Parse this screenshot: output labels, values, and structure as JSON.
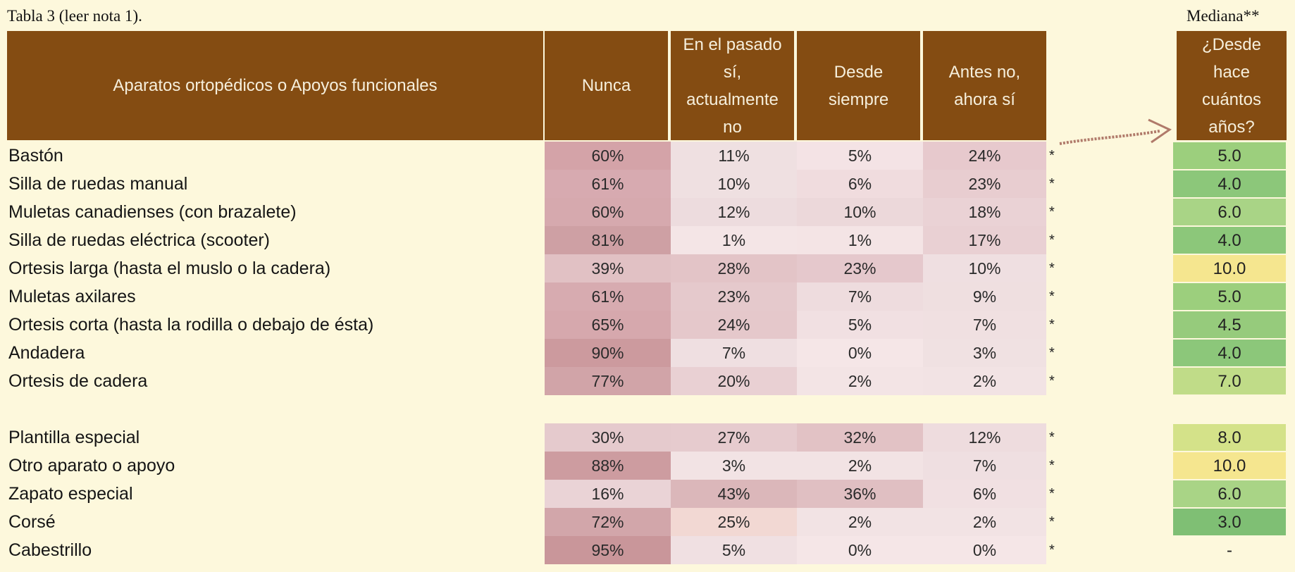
{
  "caption": "Tabla 3 (leer nota 1).",
  "median_title": "Mediana**",
  "headers": {
    "device": "Aparatos ortopédicos o Apoyos funcionales",
    "never": "Nunca",
    "past_lines": [
      "En el pasado",
      "sí,",
      "actualmente",
      "no"
    ],
    "always_lines": [
      "Desde",
      "siempre"
    ],
    "now_lines": [
      "Antes no,",
      "ahora sí"
    ],
    "years_lines": [
      "¿Desde",
      "hace",
      "cuántos",
      "años?"
    ]
  },
  "colors": {
    "header_bg": "#844c12",
    "page_bg": "#fdf8dc"
  },
  "rows": [
    {
      "label": "Bastón",
      "nunca": "60%",
      "pasado": "11%",
      "siempre": "5%",
      "ahora": "24%",
      "star": "*",
      "mediana": "5.0",
      "colors": [
        "#d4a3a8",
        "#efe0e1",
        "#f4e3e5",
        "#e7c9cd"
      ],
      "mcolor": "#9ccf7d"
    },
    {
      "label": "Silla de ruedas manual",
      "nunca": "61%",
      "pasado": "10%",
      "siempre": "6%",
      "ahora": "23%",
      "star": "*",
      "mediana": "4.0",
      "colors": [
        "#d7aab0",
        "#efe0e1",
        "#f0dcde",
        "#e8cdd0"
      ],
      "mcolor": "#8cc77a"
    },
    {
      "label": "Muletas canadienses (con brazalete)",
      "nunca": "60%",
      "pasado": "12%",
      "siempre": "10%",
      "ahora": "18%",
      "star": "*",
      "mediana": "6.0",
      "colors": [
        "#d6a9ae",
        "#eddcde",
        "#ecd8da",
        "#ead2d5"
      ],
      "mcolor": "#a9d486"
    },
    {
      "label": "Silla de ruedas eléctrica (scooter)",
      "nunca": "81%",
      "pasado": "1%",
      "siempre": "1%",
      "ahora": "17%",
      "star": "*",
      "mediana": "4.0",
      "colors": [
        "#cea0a4",
        "#f4e5e6",
        "#f4e4e5",
        "#e9d0d3"
      ],
      "mcolor": "#8cc77a"
    },
    {
      "label": "Ortesis larga (hasta el muslo o la cadera)",
      "nunca": "39%",
      "pasado": "28%",
      "siempre": "23%",
      "ahora": "10%",
      "star": "*",
      "mediana": "10.0",
      "colors": [
        "#e1c1c4",
        "#e3c4c7",
        "#e5c8cc",
        "#efdfe1"
      ],
      "mcolor": "#f5e68f"
    },
    {
      "label": "Muletas axilares",
      "nunca": "61%",
      "pasado": "23%",
      "siempre": "7%",
      "ahora": "9%",
      "star": "*",
      "mediana": "5.0",
      "colors": [
        "#d7abb0",
        "#e5c9cc",
        "#eedcde",
        "#efdfe0"
      ],
      "mcolor": "#9ccf7d"
    },
    {
      "label": "Ortesis corta (hasta la rodilla o debajo de ésta)",
      "nunca": "65%",
      "pasado": "24%",
      "siempre": "5%",
      "ahora": "7%",
      "star": "*",
      "mediana": "4.5",
      "colors": [
        "#d6a8ad",
        "#e5c8cb",
        "#f1e0e2",
        "#f0e0e1"
      ],
      "mcolor": "#96cb7c"
    },
    {
      "label": "Andadera",
      "nunca": "90%",
      "pasado": "7%",
      "siempre": "0%",
      "ahora": "3%",
      "star": "*",
      "mediana": "4.0",
      "colors": [
        "#cc9a9e",
        "#efdfe1",
        "#f5e6e7",
        "#f0e1e2"
      ],
      "mcolor": "#8cc77a"
    },
    {
      "label": "Ortesis de cadera",
      "nunca": "77%",
      "pasado": "20%",
      "siempre": "2%",
      "ahora": "2%",
      "star": "*",
      "mediana": "7.0",
      "colors": [
        "#d1a4a8",
        "#e9d0d3",
        "#f3e4e5",
        "#f2e3e4"
      ],
      "mcolor": "#c0dc88"
    },
    {
      "label": "Plantilla especial",
      "nunca": "30%",
      "pasado": "27%",
      "siempre": "32%",
      "ahora": "12%",
      "star": "*",
      "mediana": "8.0",
      "colors": [
        "#e5cacd",
        "#e6cbce",
        "#e2c2c5",
        "#eedcde"
      ],
      "mcolor": "#d4e289"
    },
    {
      "label": "Otro aparato o apoyo",
      "nunca": "88%",
      "pasado": "3%",
      "siempre": "2%",
      "ahora": "7%",
      "star": "*",
      "mediana": "10.0",
      "colors": [
        "#cd9ca0",
        "#f2e3e4",
        "#f2e3e4",
        "#efdfe1"
      ],
      "mcolor": "#f5e68f"
    },
    {
      "label": "Zapato especial",
      "nunca": "16%",
      "pasado": "43%",
      "siempre": "36%",
      "ahora": "6%",
      "star": "*",
      "mediana": "6.0",
      "colors": [
        "#ead3d6",
        "#dbb7ba",
        "#e0bfc2",
        "#f1e0e2"
      ],
      "mcolor": "#a9d486"
    },
    {
      "label": "Corsé",
      "nunca": "72%",
      "pasado": "25%",
      "siempre": "2%",
      "ahora": "2%",
      "star": "*",
      "mediana": "3.0",
      "colors": [
        "#d2a6aa",
        "#f2d8d3",
        "#f2e3e4",
        "#f2e3e4"
      ],
      "mcolor": "#7fbf74"
    },
    {
      "label": "Cabestrillo",
      "nunca": "95%",
      "pasado": "5%",
      "siempre": "0%",
      "ahora": "0%",
      "star": "*",
      "mediana": "-",
      "colors": [
        "#c9969a",
        "#f0e0e2",
        "#f5e6e7",
        "#f5e6e7"
      ],
      "mcolor": ""
    }
  ]
}
